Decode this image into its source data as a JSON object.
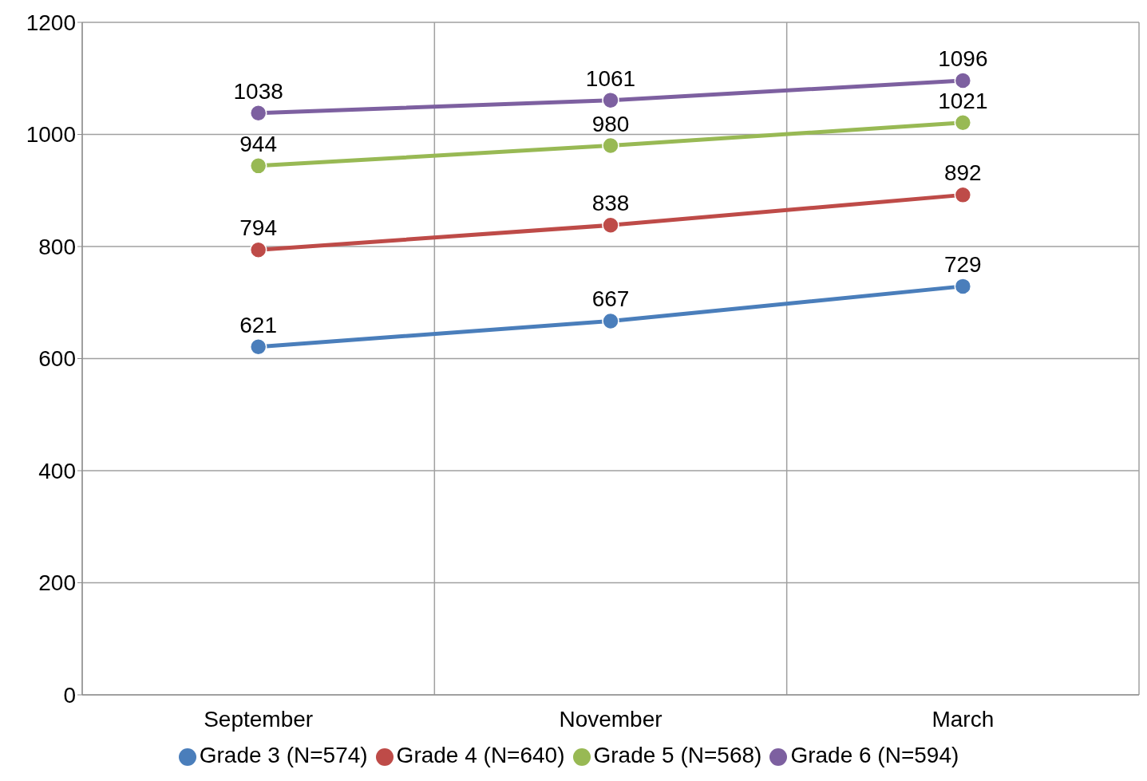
{
  "chart_data": {
    "type": "line",
    "categories": [
      "September",
      "November",
      "March"
    ],
    "series": [
      {
        "name": "Grade 3 (N=574)",
        "color": "#4a7ebb",
        "values": [
          621,
          667,
          729
        ]
      },
      {
        "name": "Grade 4 (N=640)",
        "color": "#be4b48",
        "values": [
          794,
          838,
          892
        ]
      },
      {
        "name": "Grade 5 (N=568)",
        "color": "#98b954",
        "values": [
          944,
          980,
          1021
        ]
      },
      {
        "name": "Grade 6 (N=594)",
        "color": "#7d60a0",
        "values": [
          1038,
          1061,
          1096
        ]
      }
    ],
    "ylim": [
      0,
      1200
    ],
    "yticks": [
      0,
      200,
      400,
      600,
      800,
      1000,
      1200
    ],
    "grid": true,
    "legend": "bottom",
    "marker": "circle",
    "line_style": "solid",
    "data_labels": true
  }
}
